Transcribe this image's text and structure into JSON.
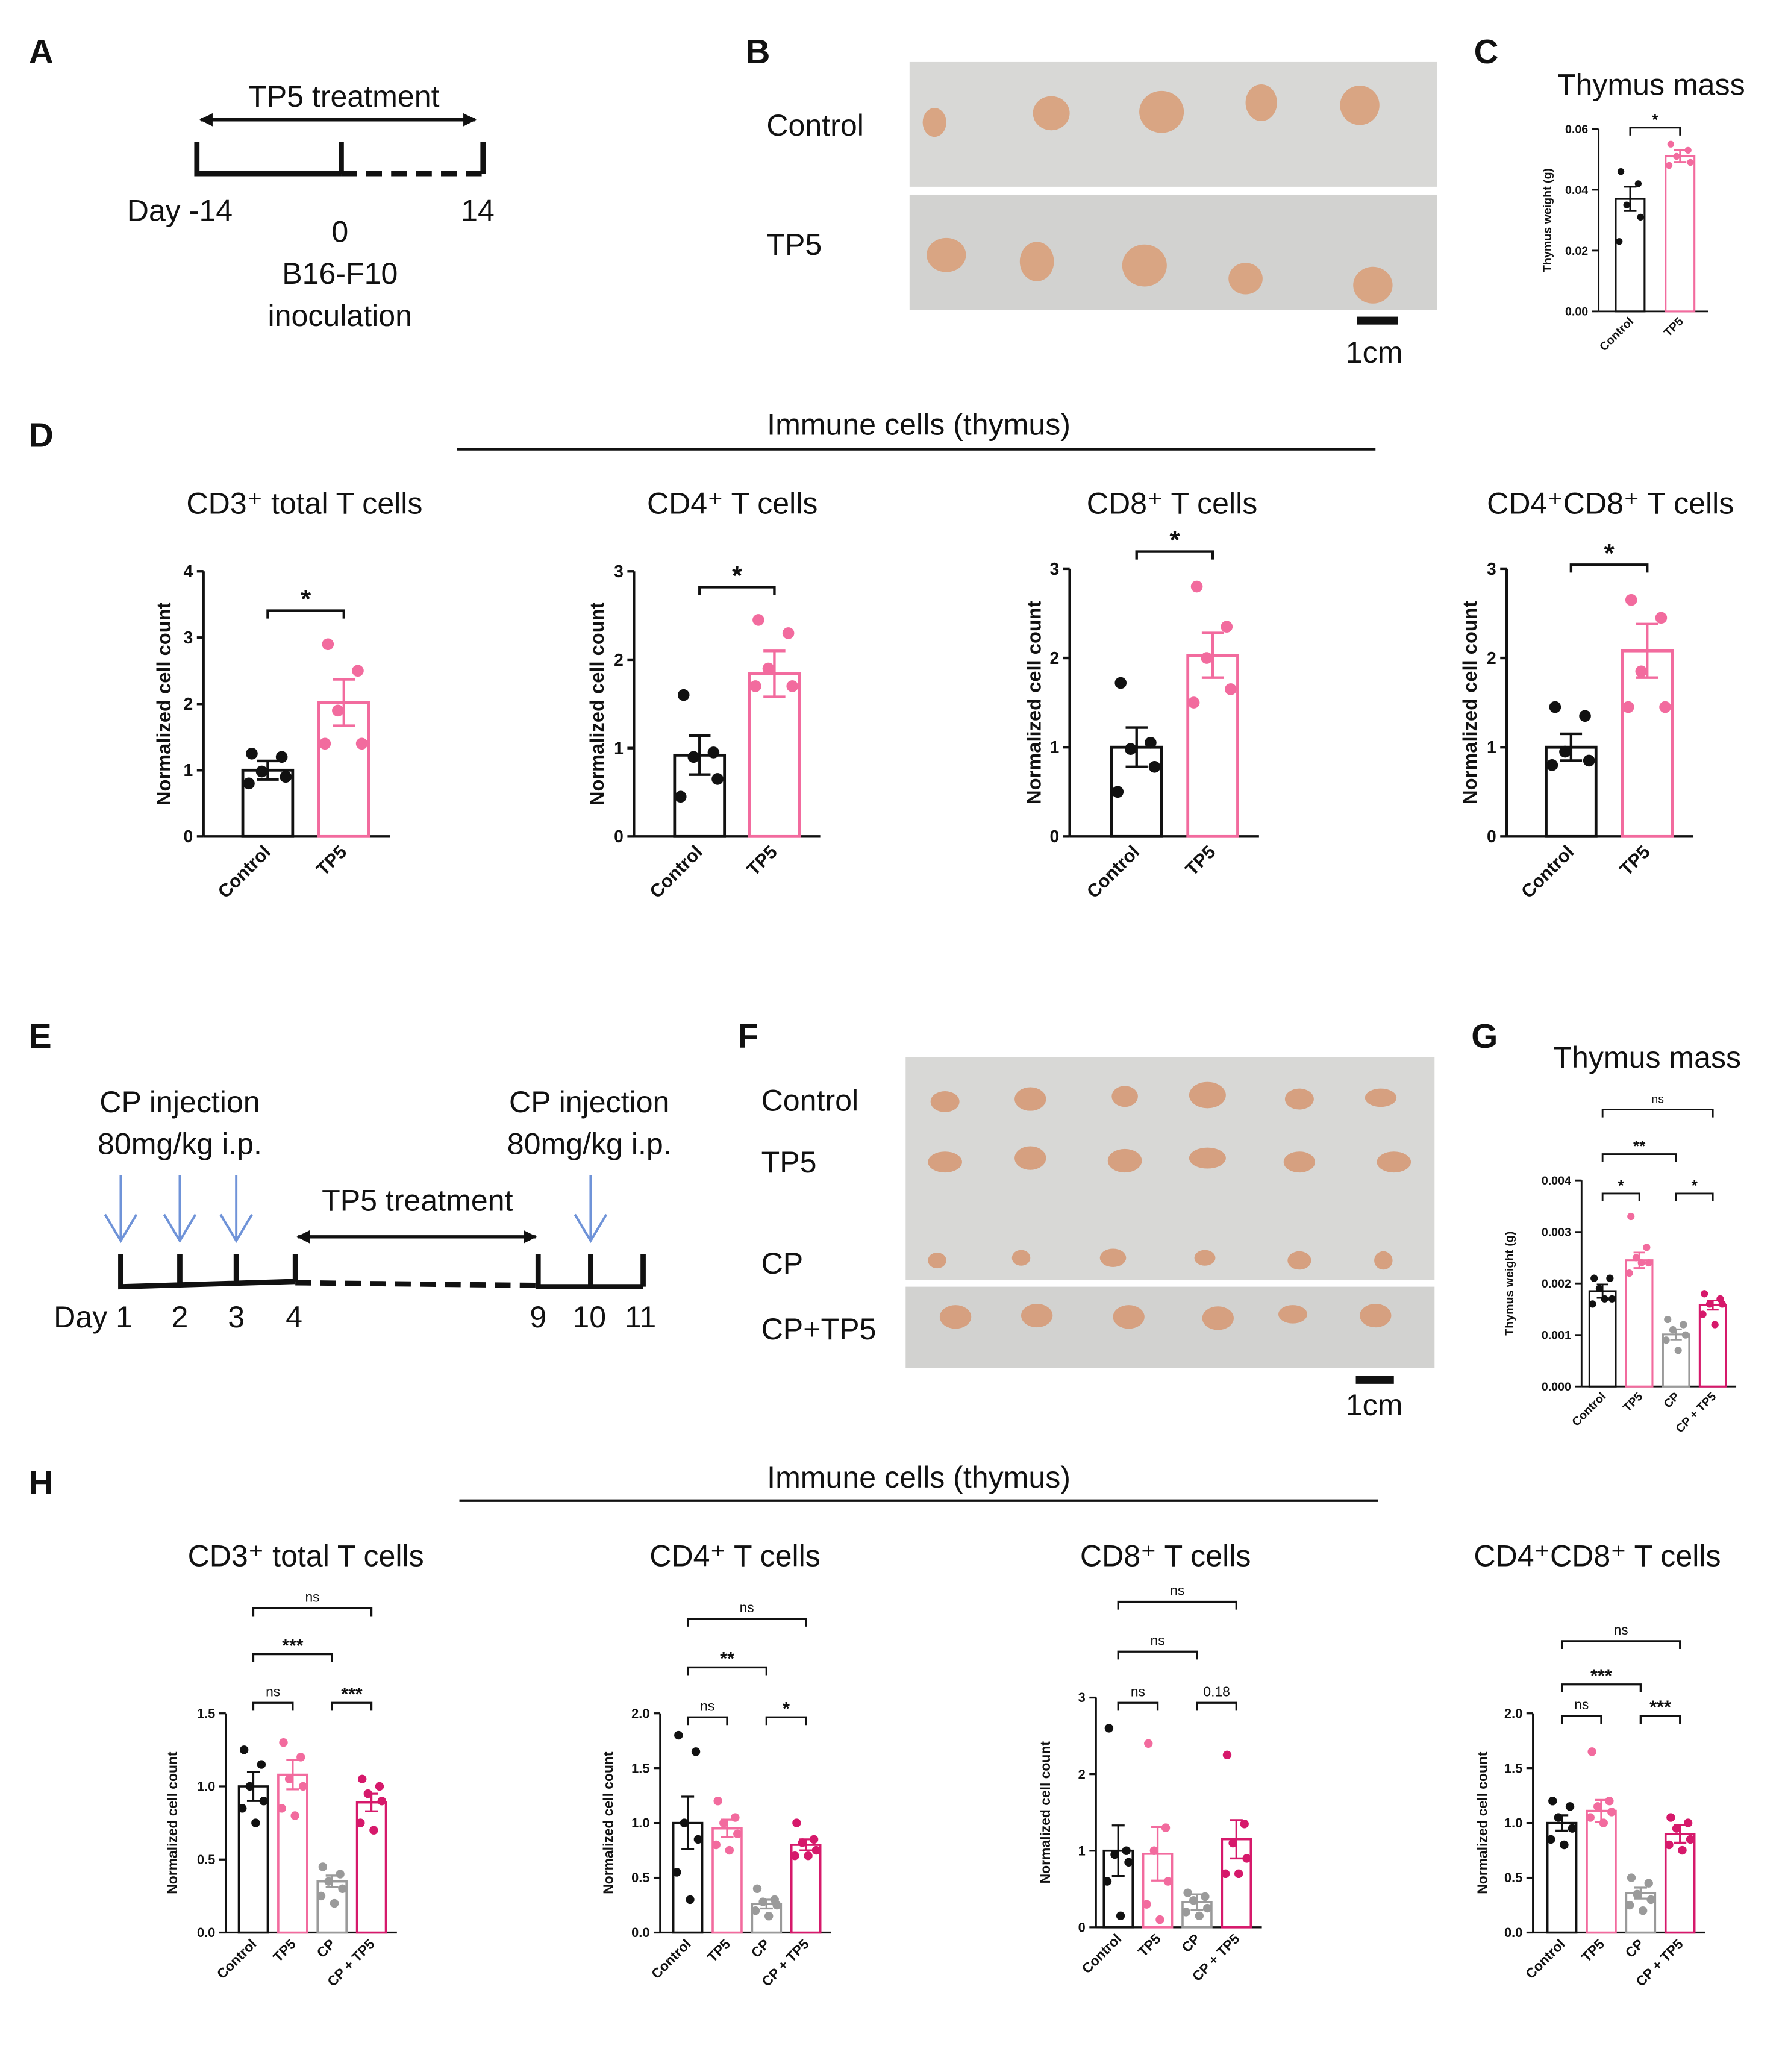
{
  "panel_letters": [
    "A",
    "B",
    "C",
    "D",
    "E",
    "F",
    "G",
    "H"
  ],
  "timeline_a": {
    "label": "TP5 treatment",
    "days": [
      "Day -14",
      "0",
      "14"
    ],
    "event": [
      "B16-F10",
      "inoculation"
    ]
  },
  "photo_b": {
    "rows": [
      "Control",
      "TP5"
    ],
    "scale": "1cm"
  },
  "section_d": "Immune cells (thymus)",
  "timeline_e": {
    "injections": [
      {
        "label": "CP injection",
        "dose": "80mg/kg i.p."
      },
      {
        "label": "CP injection",
        "dose": "80mg/kg i.p."
      }
    ],
    "label": "TP5 treatment",
    "days": [
      "Day 1",
      "2",
      "3",
      "4",
      "9",
      "10",
      "11"
    ]
  },
  "photo_f": {
    "rows": [
      "Control",
      "TP5",
      "CP",
      "CP+TP5"
    ],
    "scale": "1cm"
  },
  "section_h": "Immune cells (thymus)",
  "chart_data": [
    {
      "type": "bar",
      "title": "Thymus mass",
      "ylabel": "Thymus weight (g)",
      "categories": [
        "Control",
        "TP5"
      ],
      "colors": [
        "#111111",
        "#f26b9e"
      ],
      "values": [
        0.037,
        0.051
      ],
      "errors": [
        0.004,
        0.002
      ],
      "points": [
        [
          0.046,
          0.042,
          0.035,
          0.031,
          0.023
        ],
        [
          0.055,
          0.053,
          0.051,
          0.049,
          0.048
        ]
      ],
      "ylim": [
        0,
        0.06
      ],
      "yticks": [
        {
          "value": 0,
          "label": "0.00"
        },
        0.02,
        0.04,
        0.06
      ],
      "significance": [
        {
          "from": 0,
          "to": 1,
          "label": "*"
        }
      ]
    },
    {
      "type": "bar",
      "title": "CD3⁺ total T cells",
      "ylabel": "Normalized cell count",
      "categories": [
        "Control",
        "TP5"
      ],
      "colors": [
        "#111111",
        "#f26b9e"
      ],
      "values": [
        1.0,
        2.02
      ],
      "errors": [
        0.14,
        0.35
      ],
      "points": [
        [
          1.25,
          1.2,
          0.98,
          0.9,
          0.8
        ],
        [
          2.9,
          2.5,
          1.9,
          1.4,
          1.4
        ]
      ],
      "ylim": [
        0,
        4
      ],
      "yticks": [
        0,
        1,
        2,
        3,
        4
      ],
      "significance": [
        {
          "from": 0,
          "to": 1,
          "label": "*"
        }
      ]
    },
    {
      "type": "bar",
      "title": "CD4⁺ T cells",
      "ylabel": "Normalized cell count",
      "categories": [
        "Control",
        "TP5"
      ],
      "colors": [
        "#111111",
        "#f26b9e"
      ],
      "values": [
        0.92,
        1.84
      ],
      "errors": [
        0.22,
        0.26
      ],
      "points": [
        [
          1.6,
          0.95,
          0.9,
          0.65,
          0.45
        ],
        [
          2.45,
          2.3,
          1.9,
          1.7,
          1.7
        ]
      ],
      "ylim": [
        0,
        3
      ],
      "yticks": [
        0,
        1,
        2,
        3
      ],
      "significance": [
        {
          "from": 0,
          "to": 1,
          "label": "*"
        }
      ]
    },
    {
      "type": "bar",
      "title": "CD8⁺ T cells",
      "ylabel": "Normalized cell count",
      "categories": [
        "Control",
        "TP5"
      ],
      "colors": [
        "#111111",
        "#f26b9e"
      ],
      "values": [
        1.0,
        2.03
      ],
      "errors": [
        0.22,
        0.25
      ],
      "points": [
        [
          1.72,
          1.05,
          0.98,
          0.78,
          0.5
        ],
        [
          2.8,
          2.35,
          2.0,
          1.65,
          1.5
        ]
      ],
      "ylim": [
        0,
        3
      ],
      "yticks": [
        0,
        1,
        2,
        3
      ],
      "significance": [
        {
          "from": 0,
          "to": 1,
          "label": "*"
        }
      ]
    },
    {
      "type": "bar",
      "title": "CD4⁺CD8⁺ T cells",
      "ylabel": "Normalized cell count",
      "categories": [
        "Control",
        "TP5"
      ],
      "colors": [
        "#111111",
        "#f26b9e"
      ],
      "values": [
        1.0,
        2.08
      ],
      "errors": [
        0.15,
        0.3
      ],
      "points": [
        [
          1.45,
          1.35,
          0.95,
          0.85,
          0.8
        ],
        [
          2.65,
          2.45,
          1.85,
          1.45,
          1.45
        ]
      ],
      "ylim": [
        0,
        3
      ],
      "yticks": [
        0,
        1,
        2,
        3
      ],
      "significance": [
        {
          "from": 0,
          "to": 1,
          "label": "*"
        }
      ]
    },
    {
      "type": "bar",
      "title": "Thymus mass",
      "ylabel": "Thymus weight (g)",
      "categories": [
        "Control",
        "TP5",
        "CP",
        "CP + TP5"
      ],
      "colors": [
        "#111111",
        "#f26b9e",
        "#9a9a9a",
        "#d6196b"
      ],
      "values": [
        0.00185,
        0.00245,
        0.00101,
        0.00158
      ],
      "errors": [
        0.00013,
        0.00015,
        0.0001,
        9e-05
      ],
      "points": [
        [
          0.0021,
          0.0021,
          0.0019,
          0.0017,
          0.0016,
          0.0017
        ],
        [
          0.0033,
          0.0027,
          0.0025,
          0.0024,
          0.0022,
          0.0024
        ],
        [
          0.0013,
          0.0012,
          0.0011,
          0.001,
          0.0009,
          0.0007
        ],
        [
          0.0018,
          0.0017,
          0.0016,
          0.0016,
          0.0014,
          0.0012
        ]
      ],
      "ylim": [
        0,
        0.004
      ],
      "yticks": [
        {
          "value": 0,
          "label": "0.000"
        },
        0.001,
        0.002,
        0.003,
        0.004
      ],
      "significance": [
        {
          "from": 0,
          "to": 1,
          "label": "*"
        },
        {
          "from": 2,
          "to": 3,
          "label": "*"
        },
        {
          "from": 0,
          "to": 2,
          "label": "**"
        },
        {
          "from": 0,
          "to": 3,
          "label": "ns"
        }
      ]
    },
    {
      "type": "bar",
      "title": "CD3⁺ total T cells",
      "ylabel": "Normalized cell count",
      "categories": [
        "Control",
        "TP5",
        "CP",
        "CP + TP5"
      ],
      "colors": [
        "#111111",
        "#f26b9e",
        "#9a9a9a",
        "#d6196b"
      ],
      "values": [
        1.0,
        1.08,
        0.35,
        0.89
      ],
      "errors": [
        0.1,
        0.1,
        0.04,
        0.06
      ],
      "points": [
        [
          1.25,
          1.15,
          1.0,
          0.9,
          0.85,
          0.75
        ],
        [
          1.3,
          1.2,
          1.05,
          1.0,
          0.85,
          0.8
        ],
        [
          0.45,
          0.4,
          0.35,
          0.3,
          0.25,
          0.2
        ],
        [
          1.05,
          1.0,
          0.95,
          0.9,
          0.75,
          0.7
        ]
      ],
      "ylim": [
        0,
        1.5
      ],
      "yticks": [
        {
          "value": 0,
          "label": "0.0"
        },
        0.5,
        {
          "value": 1,
          "label": "1.0"
        },
        1.5
      ],
      "significance": [
        {
          "from": 0,
          "to": 1,
          "label": "ns"
        },
        {
          "from": 2,
          "to": 3,
          "label": "***"
        },
        {
          "from": 0,
          "to": 2,
          "label": "***"
        },
        {
          "from": 0,
          "to": 3,
          "label": "ns"
        }
      ]
    },
    {
      "type": "bar",
      "title": "CD4⁺ T cells",
      "ylabel": "Normalized cell count",
      "categories": [
        "Control",
        "TP5",
        "CP",
        "CP + TP5"
      ],
      "colors": [
        "#111111",
        "#f26b9e",
        "#9a9a9a",
        "#d6196b"
      ],
      "values": [
        1.0,
        0.95,
        0.26,
        0.8
      ],
      "errors": [
        0.24,
        0.08,
        0.04,
        0.05
      ],
      "points": [
        [
          1.8,
          1.65,
          1.0,
          0.85,
          0.55,
          0.3
        ],
        [
          1.2,
          1.05,
          1.0,
          0.9,
          0.8,
          0.75
        ],
        [
          0.4,
          0.3,
          0.28,
          0.25,
          0.2,
          0.15
        ],
        [
          1.0,
          0.85,
          0.82,
          0.75,
          0.7,
          0.7
        ]
      ],
      "ylim": [
        0,
        2
      ],
      "yticks": [
        {
          "value": 0,
          "label": "0.0"
        },
        0.5,
        {
          "value": 1,
          "label": "1.0"
        },
        1.5,
        {
          "value": 2,
          "label": "2.0"
        }
      ],
      "significance": [
        {
          "from": 0,
          "to": 1,
          "label": "ns"
        },
        {
          "from": 2,
          "to": 3,
          "label": "*"
        },
        {
          "from": 0,
          "to": 2,
          "label": "**"
        },
        {
          "from": 0,
          "to": 3,
          "label": "ns"
        }
      ]
    },
    {
      "type": "bar",
      "title": "CD8⁺ T cells",
      "ylabel": "Normalized cell count",
      "categories": [
        "Control",
        "TP5",
        "CP",
        "CP + TP5"
      ],
      "colors": [
        "#111111",
        "#f26b9e",
        "#9a9a9a",
        "#d6196b"
      ],
      "values": [
        1.0,
        0.96,
        0.33,
        1.15
      ],
      "errors": [
        0.33,
        0.35,
        0.1,
        0.25
      ],
      "points": [
        [
          2.6,
          1.0,
          0.95,
          0.85,
          0.6,
          0.15
        ],
        [
          2.4,
          1.3,
          1.0,
          0.6,
          0.3,
          0.1
        ],
        [
          0.45,
          0.4,
          0.35,
          0.25,
          0.2,
          0.15
        ],
        [
          2.25,
          1.35,
          1.1,
          0.9,
          0.7,
          0.7
        ]
      ],
      "ylim": [
        0,
        3
      ],
      "yticks": [
        0,
        1,
        2,
        3
      ],
      "significance": [
        {
          "from": 0,
          "to": 1,
          "label": "ns"
        },
        {
          "from": 2,
          "to": 3,
          "label": "0.18"
        },
        {
          "from": 0,
          "to": 2,
          "label": "ns"
        },
        {
          "from": 0,
          "to": 3,
          "label": "ns"
        }
      ]
    },
    {
      "type": "bar",
      "title": "CD4⁺CD8⁺ T cells",
      "ylabel": "Normalized cell count",
      "categories": [
        "Control",
        "TP5",
        "CP",
        "CP + TP5"
      ],
      "colors": [
        "#111111",
        "#f26b9e",
        "#9a9a9a",
        "#d6196b"
      ],
      "values": [
        1.0,
        1.11,
        0.36,
        0.9
      ],
      "errors": [
        0.07,
        0.1,
        0.05,
        0.08
      ],
      "points": [
        [
          1.2,
          1.15,
          1.05,
          0.95,
          0.85,
          0.8
        ],
        [
          1.65,
          1.2,
          1.15,
          1.1,
          1.05,
          1.0
        ],
        [
          0.5,
          0.45,
          0.35,
          0.3,
          0.25,
          0.2
        ],
        [
          1.05,
          1.0,
          0.95,
          0.85,
          0.8,
          0.75
        ]
      ],
      "ylim": [
        0,
        2
      ],
      "yticks": [
        {
          "value": 0,
          "label": "0.0"
        },
        0.5,
        {
          "value": 1,
          "label": "1.0"
        },
        1.5,
        {
          "value": 2,
          "label": "2.0"
        }
      ],
      "significance": [
        {
          "from": 0,
          "to": 1,
          "label": "ns"
        },
        {
          "from": 2,
          "to": 3,
          "label": "***"
        },
        {
          "from": 0,
          "to": 2,
          "label": "***"
        },
        {
          "from": 0,
          "to": 3,
          "label": "ns"
        }
      ]
    }
  ]
}
